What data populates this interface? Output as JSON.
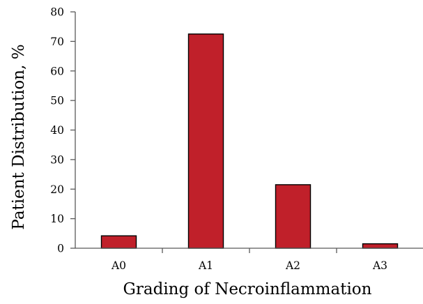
{
  "chart_data": {
    "type": "bar",
    "title": "",
    "xlabel": "Grading of Necroinflammation",
    "ylabel": "Patient Distribution, %",
    "categories": [
      "A0",
      "A1",
      "A2",
      "A3"
    ],
    "values": [
      4.2,
      72.5,
      21.5,
      1.5
    ],
    "ylim": [
      0,
      80
    ],
    "yticks": [
      0,
      10,
      20,
      30,
      40,
      50,
      60,
      70,
      80
    ],
    "grid": false,
    "legend": "none",
    "bar_color": "#C0202A",
    "bar_edge_color": "#000000",
    "axis_color": "#595959"
  }
}
